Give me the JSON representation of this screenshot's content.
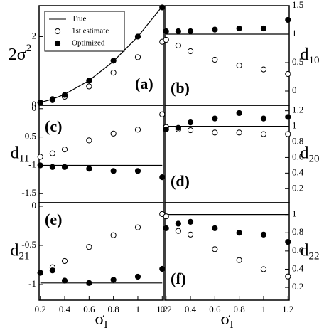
{
  "chart_data": [
    {
      "type": "scatter",
      "label": "(a)",
      "ylabel": "2σ",
      "ylabel_sup": "2",
      "legend": "upper left",
      "x": [
        0.2,
        0.3,
        0.4,
        0.6,
        0.8,
        1,
        1.2
      ],
      "xlim": [
        0.19,
        1.21
      ],
      "ylim": [
        0,
        2.9
      ],
      "yticks": [
        0,
        2
      ],
      "series": [
        {
          "name": "True",
          "style": "line",
          "color": "#000000",
          "values": [
            0.08,
            0.18,
            0.32,
            0.72,
            1.28,
            2,
            2.88
          ]
        },
        {
          "name": "1st estimate",
          "style": "open",
          "color": "#000000",
          "values": [
            0.08,
            0.15,
            0.25,
            0.55,
            0.95,
            1.4,
            1.85
          ]
        },
        {
          "name": "Optimized",
          "style": "filled",
          "color": "#000000",
          "values": [
            0.08,
            0.18,
            0.3,
            0.72,
            1.3,
            2,
            2.85
          ]
        }
      ]
    },
    {
      "type": "scatter",
      "label": "(b)",
      "ylabel": "d",
      "ylabel_sub": "10",
      "x": [
        0.2,
        0.3,
        0.4,
        0.6,
        0.8,
        1,
        1.2
      ],
      "xlim": [
        0.19,
        1.21
      ],
      "ylim": [
        -0.25,
        1.5
      ],
      "yticks": [
        0,
        0.5,
        1,
        1.5
      ],
      "series": [
        {
          "style": "line",
          "color": "#000000",
          "values": [
            1,
            1,
            1,
            1,
            1,
            1,
            1
          ]
        },
        {
          "style": "open",
          "color": "#000000",
          "values": [
            0.9,
            0.8,
            0.7,
            0.55,
            0.45,
            0.38,
            0.3
          ]
        },
        {
          "style": "filled",
          "color": "#000000",
          "values": [
            1.05,
            1.05,
            1.05,
            1.08,
            1.1,
            1.1,
            1.25
          ]
        }
      ]
    },
    {
      "type": "scatter",
      "label": "(c)",
      "ylabel": "d",
      "ylabel_sub": "11",
      "x": [
        0.2,
        0.3,
        0.4,
        0.6,
        0.8,
        1,
        1.2
      ],
      "xlim": [
        0.19,
        1.21
      ],
      "ylim": [
        -1.66,
        0.06
      ],
      "yticks": [
        -1.5,
        -1,
        -0.5,
        0
      ],
      "series": [
        {
          "style": "line",
          "color": "#000000",
          "values": [
            -1,
            -1,
            -1,
            -1,
            -1,
            -1,
            -1
          ]
        },
        {
          "style": "open",
          "color": "#000000",
          "values": [
            -0.85,
            -0.79,
            -0.72,
            -0.56,
            -0.44,
            -0.37,
            -0.1
          ]
        },
        {
          "style": "filled",
          "color": "#000000",
          "values": [
            -1,
            -1.03,
            -1.03,
            -1.06,
            -1.1,
            -1.1,
            -1.21
          ]
        }
      ]
    },
    {
      "type": "scatter",
      "label": "(d)",
      "ylabel": "d",
      "ylabel_sub": "20",
      "x": [
        0.2,
        0.3,
        0.4,
        0.6,
        0.8,
        1,
        1.2
      ],
      "xlim": [
        0.19,
        1.21
      ],
      "ylim": [
        0.02,
        1.27
      ],
      "yticks": [
        0.2,
        0.4,
        0.6,
        0.8,
        1,
        1.2
      ],
      "series": [
        {
          "style": "line",
          "color": "#000000",
          "values": [
            1,
            1,
            1,
            1,
            1,
            1,
            1
          ]
        },
        {
          "style": "open",
          "color": "#000000",
          "values": [
            0.99,
            0.96,
            0.95,
            0.92,
            0.92,
            0.9,
            0.9
          ]
        },
        {
          "style": "filled",
          "color": "#000000",
          "values": [
            0.96,
            0.98,
            1.05,
            1.1,
            1.17,
            1.1,
            1.12
          ]
        }
      ]
    },
    {
      "type": "scatter",
      "label": "(e)",
      "ylabel": "d",
      "ylabel_sub": "21",
      "xlabel": "σ",
      "xlabel_sub": "I",
      "x": [
        0.2,
        0.3,
        0.4,
        0.6,
        0.8,
        1,
        1.2
      ],
      "xlim": [
        0.19,
        1.21
      ],
      "xticks": [
        0.2,
        0.4,
        0.6,
        0.8,
        1,
        1.2
      ],
      "ylim": [
        -1.2,
        0.045
      ],
      "yticks": [
        -1,
        -0.5,
        0
      ],
      "series": [
        {
          "style": "line",
          "color": "#000000",
          "values": [
            -0.98,
            -0.98,
            -0.98,
            -0.98,
            -0.98,
            -0.98,
            -0.98
          ]
        },
        {
          "style": "open",
          "color": "#000000",
          "values": [
            -0.85,
            -0.78,
            -0.7,
            -0.52,
            -0.37,
            -0.27,
            -0.1
          ]
        },
        {
          "style": "filled",
          "color": "#000000",
          "values": [
            -0.85,
            -0.82,
            -0.95,
            -0.98,
            -0.94,
            -0.9,
            -0.8
          ]
        }
      ]
    },
    {
      "type": "scatter",
      "label": "(f)",
      "ylabel": "d",
      "ylabel_sub": "22",
      "xlabel": "σ",
      "xlabel_sub": "I",
      "x": [
        0.2,
        0.3,
        0.4,
        0.6,
        0.8,
        1,
        1.2
      ],
      "xlim": [
        0.19,
        1.21
      ],
      "xticks": [
        0.2,
        0.4,
        0.6,
        0.8,
        1,
        1.2
      ],
      "ylim": [
        0.06,
        1.13
      ],
      "yticks": [
        0.2,
        0.4,
        0.6,
        0.8,
        1
      ],
      "series": [
        {
          "style": "line",
          "color": "#000000",
          "values": [
            1,
            1,
            1,
            1,
            1,
            1,
            1
          ]
        },
        {
          "style": "open",
          "color": "#000000",
          "values": [
            0.98,
            0.82,
            0.78,
            0.62,
            0.5,
            0.4,
            0.32
          ]
        },
        {
          "style": "filled",
          "color": "#000000",
          "values": [
            0.85,
            0.9,
            0.92,
            0.85,
            0.8,
            0.78,
            0.7
          ]
        }
      ]
    }
  ]
}
